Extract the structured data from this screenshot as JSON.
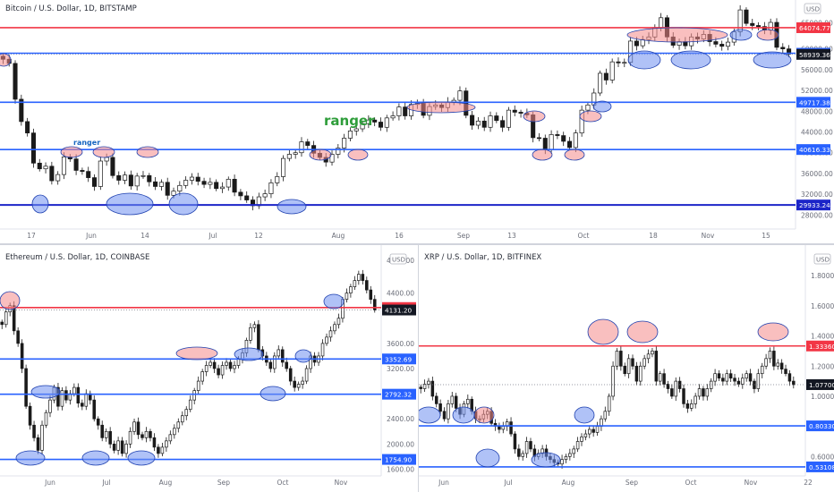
{
  "colors": {
    "red": "#f23645",
    "blue": "#2962ff",
    "navy": "#1c25c8",
    "up": "#1a1a1a",
    "down": "#1a1a1a",
    "ellipseRed": "#f48a8a",
    "ellipseBlue": "#6f8ff0",
    "green": "#2e9d3a",
    "label": "#1565c0"
  },
  "chart_data": [
    {
      "id": "btc",
      "type": "candlestick",
      "title": "Bitcoin / U.S. Dollar, 1D, BITSTAMP",
      "currency": "USD",
      "ylim": [
        26000,
        67000
      ],
      "yticks": [
        {
          "v": 65000,
          "t": "65000.00"
        },
        {
          "v": 60000,
          "t": "60000.00"
        },
        {
          "v": 56000,
          "t": "56000.00"
        },
        {
          "v": 52000,
          "t": "52000.00"
        },
        {
          "v": 48000,
          "t": "48000.00"
        },
        {
          "v": 44000,
          "t": "44000.00"
        },
        {
          "v": 40000,
          "t": "40000.00"
        },
        {
          "v": 36000,
          "t": "36000.00"
        },
        {
          "v": 32000,
          "t": "32000.00"
        },
        {
          "v": 28000,
          "t": "28000.00"
        }
      ],
      "xticks": [
        "17",
        "Jun",
        "14",
        "Jul",
        "12",
        "Aug",
        "16",
        "Sep",
        "13",
        "Oct",
        "18",
        "Nov",
        "15"
      ],
      "levels": [
        {
          "v": 64074.77,
          "label": "64074.77",
          "color": "red"
        },
        {
          "v": 59159.88,
          "label": "59159.88",
          "color": "blue"
        },
        {
          "v": 58939.36,
          "label": "58939.36",
          "color": "dark"
        },
        {
          "v": 49717.38,
          "label": "49717.38",
          "color": "blue"
        },
        {
          "v": 40616.33,
          "label": "40616.33",
          "color": "blue"
        },
        {
          "v": 29933.24,
          "label": "29933.24",
          "color": "navy"
        }
      ],
      "annotations": [
        {
          "text": "ranger",
          "size": "big"
        },
        {
          "text": "ranger",
          "size": "small"
        }
      ],
      "closes": [
        58000,
        57200,
        50300,
        46000,
        43800,
        38000,
        36900,
        37400,
        34600,
        35800,
        39200,
        38800,
        36600,
        36400,
        35200,
        33500,
        38400,
        39100,
        35600,
        34700,
        35700,
        33600,
        35500,
        35600,
        34400,
        33500,
        34300,
        31800,
        32600,
        33700,
        34700,
        35300,
        34500,
        33900,
        34300,
        33100,
        33400,
        34900,
        32400,
        31700,
        30900,
        29800,
        31500,
        32100,
        34200,
        35400,
        38900,
        39700,
        40000,
        42100,
        41400,
        39900,
        39100,
        38200,
        39700,
        40900,
        42800,
        44200,
        44600,
        45600,
        46300,
        45900,
        44900,
        46700,
        47100,
        48800,
        47100,
        49300,
        49500,
        47200,
        48900,
        49200,
        48700,
        49800,
        50100,
        51900,
        47200,
        45300,
        46100,
        44900,
        47100,
        46200,
        44900,
        48200,
        47800,
        47600,
        47300,
        42900,
        42800,
        40600,
        43500,
        43300,
        42200,
        41000,
        43800,
        48200,
        49200,
        51500,
        55300,
        54000,
        57500,
        57300,
        57400,
        61500,
        60600,
        61800,
        62300,
        64100,
        66000,
        62300,
        60700,
        61400,
        60600,
        62300,
        61900,
        62800,
        61400,
        60900,
        60500,
        61300,
        63300,
        67500,
        64900,
        64500,
        64300,
        63600,
        65100,
        60300,
        60000,
        59000
      ]
    },
    {
      "id": "eth",
      "type": "candlestick",
      "title": "Ethereum / U.S. Dollar, 1D, COINBASE",
      "currency": "USD",
      "ylim": [
        1550,
        4850
      ],
      "yticks": [
        {
          "v": 4400,
          "t": "4400.00"
        },
        {
          "v": 3600,
          "t": "3600.00"
        },
        {
          "v": 3200,
          "t": "3200.00"
        },
        {
          "v": 2800,
          "t": "2800.00"
        },
        {
          "v": 2400,
          "t": "2400.00"
        },
        {
          "v": 2000,
          "t": "2000.00"
        },
        {
          "v": 1600,
          "t": "1600.00"
        }
      ],
      "toptick": "4800.00",
      "xticks": [
        "Jun",
        "Jul",
        "Aug",
        "Sep",
        "Oct",
        "Nov"
      ],
      "levels": [
        {
          "v": 4170.51,
          "label": "4170.51",
          "color": "red"
        },
        {
          "v": 4131.2,
          "label": "4131.20",
          "color": "dark"
        },
        {
          "v": 3352.69,
          "label": "3352.69",
          "color": "blue"
        },
        {
          "v": 2792.32,
          "label": "2792.32",
          "color": "blue"
        },
        {
          "v": 1754.9,
          "label": "1754.90",
          "color": "blue"
        }
      ],
      "closes": [
        3900,
        4100,
        4200,
        3800,
        3600,
        3200,
        2600,
        2300,
        2100,
        1900,
        2300,
        2500,
        2700,
        2900,
        2600,
        2850,
        2700,
        2800,
        2900,
        2650,
        2600,
        2800,
        2700,
        2400,
        2300,
        2100,
        2200,
        2000,
        1900,
        2050,
        1850,
        2000,
        2200,
        2350,
        2150,
        2100,
        2200,
        2100,
        1950,
        1850,
        1950,
        2050,
        2150,
        2250,
        2350,
        2450,
        2550,
        2700,
        2850,
        3000,
        3150,
        3250,
        3300,
        3200,
        3100,
        3250,
        3300,
        3200,
        3250,
        3350,
        3450,
        3650,
        3850,
        3900,
        3500,
        3400,
        3300,
        3200,
        3400,
        3500,
        3300,
        3200,
        3000,
        2900,
        2950,
        3000,
        3200,
        3400,
        3300,
        3400,
        3600,
        3700,
        3800,
        3900,
        4000,
        4300,
        4400,
        4500,
        4600,
        4700,
        4600,
        4450,
        4300,
        4131
      ]
    },
    {
      "id": "xrp",
      "type": "candlestick",
      "title": "XRP / U.S. Dollar, 1D, BITFINEX",
      "currency": "USD",
      "ylim": [
        0.495,
        1.92
      ],
      "yticks": [
        {
          "v": 1.8,
          "t": "1.80000"
        },
        {
          "v": 1.6,
          "t": "1.60000"
        },
        {
          "v": 1.4,
          "t": "1.40000"
        },
        {
          "v": 1.2,
          "t": "1.20000"
        },
        {
          "v": 1.0,
          "t": "1.00000"
        },
        {
          "v": 0.6,
          "t": "0.60000"
        }
      ],
      "xticks": [
        "Jun",
        "Jul",
        "Aug",
        "Sep",
        "Oct",
        "Nov",
        "22"
      ],
      "levels": [
        {
          "v": 1.3336,
          "label": "1.33360",
          "color": "red"
        },
        {
          "v": 1.077,
          "label": "1.07700",
          "color": "dark"
        },
        {
          "v": 0.8033,
          "label": "0.80330",
          "color": "blue"
        },
        {
          "v": 0.53108,
          "label": "0.53108",
          "color": "blue"
        }
      ],
      "closes": [
        1.05,
        1.08,
        1.1,
        1.0,
        0.95,
        0.9,
        0.85,
        0.95,
        1.0,
        0.92,
        0.88,
        0.95,
        0.98,
        0.9,
        0.85,
        0.85,
        0.88,
        0.9,
        0.82,
        0.8,
        0.78,
        0.8,
        0.83,
        0.75,
        0.65,
        0.6,
        0.62,
        0.7,
        0.65,
        0.6,
        0.62,
        0.65,
        0.6,
        0.58,
        0.56,
        0.55,
        0.58,
        0.6,
        0.62,
        0.65,
        0.7,
        0.73,
        0.75,
        0.78,
        0.76,
        0.8,
        0.85,
        0.9,
        1.0,
        1.2,
        1.3,
        1.2,
        1.15,
        1.25,
        1.2,
        1.1,
        1.2,
        1.25,
        1.28,
        1.3,
        1.1,
        1.15,
        1.08,
        1.05,
        1.0,
        1.1,
        1.05,
        0.95,
        0.92,
        0.95,
        1.0,
        1.05,
        1.0,
        1.05,
        1.1,
        1.15,
        1.12,
        1.1,
        1.15,
        1.12,
        1.1,
        1.08,
        1.12,
        1.15,
        1.1,
        1.05,
        1.15,
        1.2,
        1.25,
        1.3,
        1.2,
        1.22,
        1.18,
        1.15,
        1.1,
        1.077
      ]
    }
  ]
}
